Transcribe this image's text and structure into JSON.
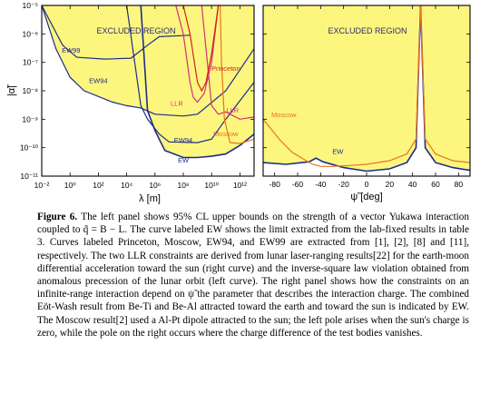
{
  "figure": {
    "label": "Figure 6.",
    "caption_lines": [
      "The left panel shows 95% CL upper bounds on the strength of a vector",
      "Yukawa interaction coupled to q̃ = B − L.  The curve labeled EW shows the limit",
      "extracted from the lab-fixed results in table 3.  Curves labeled Princeton, Moscow,",
      "EW94, and EW99 are extracted from [1], [2], [8] and [11], respectively.  The two",
      "LLR constraints are derived from lunar laser-ranging results[22] for the earth-moon",
      "differential acceleration toward the sun (right curve) and the inverse-square law",
      "violation obtained from anomalous precession of the lunar orbit (left curve).  The",
      "right panel shows how the constraints on an infinite-range interaction depend on ψ̃ the",
      "parameter that describes the interaction charge. The combined Eöt-Wash result from",
      "Be-Ti and Be-Al attracted toward the earth and toward the sun is indicated by EW.",
      "The Moscow result[2] used a Al-Pt dipole attracted to the sun; the left pole arises when",
      "the sun's charge is zero, while the pole on the right occurs where the charge difference",
      "of the test bodies vanishes."
    ]
  },
  "colors": {
    "fill": "#fdf67e",
    "ew": "#1c2c8c",
    "llr": "#d2327a",
    "moscow": "#e8741e",
    "princeton": "#cc2222"
  },
  "chart_data": [
    {
      "type": "line",
      "xlabel": "λ [m]",
      "ylabel": "|α̃|",
      "x_scale": "log",
      "y_scale": "log",
      "xlim": [
        0.01,
        10000000000000.0
      ],
      "ylim": [
        1e-11,
        1e-05
      ],
      "x_ticks": [
        "10⁻²",
        "10⁰",
        "10²",
        "10⁴",
        "10⁶",
        "10⁸",
        "10¹⁰",
        "10¹²"
      ],
      "y_ticks": [
        "10⁻¹¹",
        "10⁻¹⁰",
        "10⁻⁹",
        "10⁻⁸",
        "10⁻⁷",
        "10⁻⁶",
        "10⁻⁵"
      ],
      "region_label": "EXCLUDED REGION",
      "series": [
        {
          "name": "EW99",
          "points": [
            [
              0.01,
              1e-05
            ],
            [
              0.3,
              4e-07
            ],
            [
              3,
              1.5e-07
            ],
            [
              300,
              1.3e-07
            ],
            [
              20000.0,
              1.4e-07
            ],
            [
              300000.0,
              4e-07
            ],
            [
              2000000.0,
              8e-07
            ],
            [
              300000000.0,
              9e-07
            ]
          ]
        },
        {
          "name": "EW94",
          "points": [
            [
              0.01,
              1e-05
            ],
            [
              0.1,
              3e-07
            ],
            [
              1,
              3e-08
            ],
            [
              10,
              1e-08
            ],
            [
              1000,
              4e-09
            ],
            [
              10000.0,
              3e-09
            ],
            [
              100000.0,
              2.5e-09
            ],
            [
              1000000.0,
              1.5e-09
            ],
            [
              100000000.0,
              1.3e-09
            ],
            [
              1000000000.0,
              1.5e-09
            ],
            [
              100000000000.0,
              1e-08
            ],
            [
              10000000000000.0,
              3e-07
            ]
          ]
        },
        {
          "name": "EW94",
          "points": [
            [
              10000.0,
              1e-05
            ],
            [
              100000.0,
              3e-09
            ],
            [
              300000.0,
              1e-09
            ],
            [
              2000000.0,
              3e-10
            ],
            [
              10000000.0,
              1.6e-10
            ],
            [
              1000000000.0,
              1.5e-10
            ],
            [
              10000000000.0,
              2e-10
            ],
            [
              100000000000.0,
              1e-09
            ],
            [
              10000000000000.0,
              2e-08
            ]
          ]
        },
        {
          "name": "EW",
          "points": [
            [
              100000.0,
              1e-05
            ],
            [
              300000.0,
              2e-09
            ],
            [
              1000000.0,
              4e-10
            ],
            [
              5000000.0,
              8e-11
            ],
            [
              100000000.0,
              4.5e-11
            ],
            [
              1000000000.0,
              4.5e-11
            ],
            [
              10000000000.0,
              5e-11
            ],
            [
              100000000000.0,
              6e-11
            ],
            [
              1000000000000.0,
              1.2e-10
            ],
            [
              10000000000000.0,
              3e-10
            ]
          ]
        },
        {
          "name": "LLR",
          "points": [
            [
              30000000.0,
              1e-05
            ],
            [
              100000000.0,
              1e-06
            ],
            [
              300000000.0,
              2e-08
            ],
            [
              500000000.0,
              6e-09
            ],
            [
              1000000000.0,
              4e-09
            ],
            [
              3000000000.0,
              8e-09
            ],
            [
              10000000000.0,
              1e-07
            ],
            [
              30000000000.0,
              1e-05
            ]
          ]
        },
        {
          "name": "LLR",
          "points": [
            [
              2000000000.0,
              1e-05
            ],
            [
              5000000000.0,
              1e-07
            ],
            [
              10000000000.0,
              3e-09
            ],
            [
              30000000000.0,
              1.5e-09
            ],
            [
              100000000000.0,
              1.8e-09
            ],
            [
              1000000000000.0,
              1e-09
            ],
            [
              10000000000000.0,
              1.2e-09
            ]
          ]
        },
        {
          "name": "Princeton",
          "points": [
            [
              100000000.0,
              1e-05
            ],
            [
              300000000.0,
              1e-06
            ],
            [
              1000000000.0,
              2e-08
            ],
            [
              2000000000.0,
              1e-08
            ],
            [
              4000000000.0,
              2e-08
            ],
            [
              10000000000.0,
              2e-07
            ],
            [
              30000000000.0,
              1e-05
            ]
          ]
        },
        {
          "name": "Moscow",
          "points": [
            [
              40000000000.0,
              1e-05
            ],
            [
              50000000000.0,
              1e-07
            ],
            [
              80000000000.0,
              1e-09
            ],
            [
              200000000000.0,
              1.5e-10
            ],
            [
              1000000000000.0,
              1.4e-10
            ],
            [
              10000000000000.0,
              2e-10
            ]
          ]
        }
      ]
    },
    {
      "type": "line",
      "xlabel": "ψ̃ [deg]",
      "xlim": [
        -90,
        90
      ],
      "ylim": [
        1e-11,
        1e-05
      ],
      "y_scale": "log",
      "x_ticks": [
        "-80",
        "-60",
        "-40",
        "-20",
        "0",
        "20",
        "40",
        "60",
        "80"
      ],
      "region_label": "EXCLUDED REGION",
      "series": [
        {
          "name": "EW",
          "points": [
            [
              -90,
              3e-11
            ],
            [
              -70,
              2.6e-11
            ],
            [
              -50,
              3.2e-11
            ],
            [
              -44,
              4.3e-11
            ],
            [
              -38,
              3.2e-11
            ],
            [
              -20,
              2e-11
            ],
            [
              0,
              1.5e-11
            ],
            [
              20,
              1.8e-11
            ],
            [
              35,
              3e-11
            ],
            [
              43,
              1e-10
            ],
            [
              47,
              1e-05
            ],
            [
              51,
              1e-10
            ],
            [
              60,
              3e-11
            ],
            [
              75,
              2e-11
            ],
            [
              90,
              1.6e-11
            ]
          ]
        },
        {
          "name": "Moscow",
          "points": [
            [
              -90,
              1e-09
            ],
            [
              -84,
              5e-10
            ],
            [
              -75,
              1.8e-10
            ],
            [
              -65,
              7e-11
            ],
            [
              -55,
              4e-11
            ],
            [
              -47,
              2.6e-11
            ],
            [
              -40,
              2.2e-11
            ],
            [
              -30,
              2.2e-11
            ],
            [
              -20,
              2.3e-11
            ],
            [
              0,
              2.6e-11
            ],
            [
              20,
              3.5e-11
            ],
            [
              35,
              6e-11
            ],
            [
              43,
              2e-10
            ],
            [
              47,
              1e-05
            ],
            [
              51,
              2e-10
            ],
            [
              60,
              6e-11
            ],
            [
              75,
              3.5e-11
            ],
            [
              90,
              3e-11
            ]
          ]
        }
      ]
    }
  ]
}
